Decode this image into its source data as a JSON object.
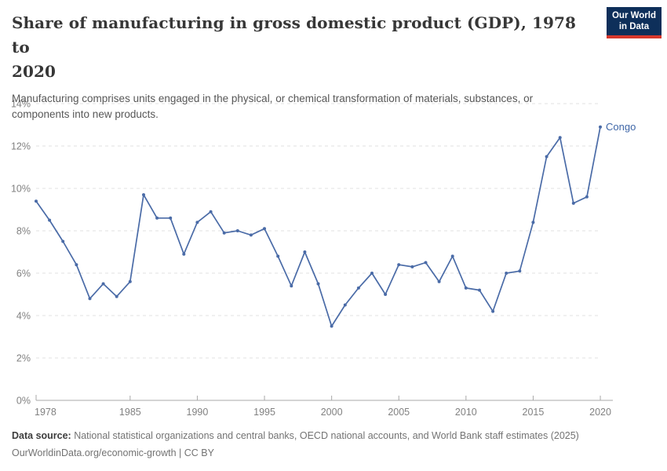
{
  "header": {
    "title_line1": "Share of manufacturing in gross domestic product (GDP), 1978 to",
    "title_line2": "2020",
    "subtitle_line1": "Manufacturing comprises units engaged in the physical, or chemical transformation of materials, substances, or",
    "subtitle_line2": "components into new products.",
    "logo_line1": "Our World",
    "logo_line2": "in Data"
  },
  "chart_data": {
    "type": "line",
    "title": "Share of manufacturing in gross domestic product (GDP), 1978 to 2020",
    "xlabel": "",
    "ylabel": "",
    "xlim": [
      1978,
      2020
    ],
    "ylim": [
      0,
      14
    ],
    "x_ticks": [
      1978,
      1985,
      1990,
      1995,
      2000,
      2005,
      2010,
      2015,
      2020
    ],
    "y_ticks": [
      0,
      2,
      4,
      6,
      8,
      10,
      12,
      14
    ],
    "y_tick_suffix": "%",
    "grid": "horizontal-dashed",
    "legend_position": "end-of-line-label",
    "x": [
      1978,
      1979,
      1980,
      1981,
      1982,
      1983,
      1984,
      1985,
      1986,
      1987,
      1988,
      1989,
      1990,
      1991,
      1992,
      1993,
      1994,
      1995,
      1996,
      1997,
      1998,
      1999,
      2000,
      2001,
      2002,
      2003,
      2004,
      2005,
      2006,
      2007,
      2008,
      2009,
      2010,
      2011,
      2012,
      2013,
      2014,
      2015,
      2016,
      2017,
      2018,
      2019,
      2020
    ],
    "series": [
      {
        "name": "Congo",
        "color": "#4a6ba7",
        "values": [
          9.4,
          8.5,
          7.5,
          6.4,
          4.8,
          5.5,
          4.9,
          5.6,
          9.7,
          8.6,
          8.6,
          6.9,
          8.4,
          8.9,
          7.9,
          8.0,
          7.8,
          8.1,
          6.8,
          5.4,
          7.0,
          5.5,
          3.5,
          4.5,
          5.3,
          6.0,
          5.0,
          6.4,
          6.3,
          6.5,
          5.6,
          6.8,
          5.3,
          5.2,
          4.2,
          6.0,
          6.1,
          8.4,
          11.5,
          12.4,
          9.3,
          9.6,
          12.9
        ]
      }
    ]
  },
  "footer": {
    "source_label": "Data source:",
    "source_text": " National statistical organizations and central banks, OECD national accounts, and World Bank staff estimates (2025)",
    "attribution": "OurWorldinData.org/economic-growth | CC BY"
  },
  "colors": {
    "line": "#4a6ba7",
    "series_label": "#3e66a7",
    "grid": "#e0e0e0",
    "axis": "#a8a8a8",
    "tick_text": "#818181",
    "logo_bg": "#0e2f5a",
    "logo_stripe": "#d7382c"
  }
}
